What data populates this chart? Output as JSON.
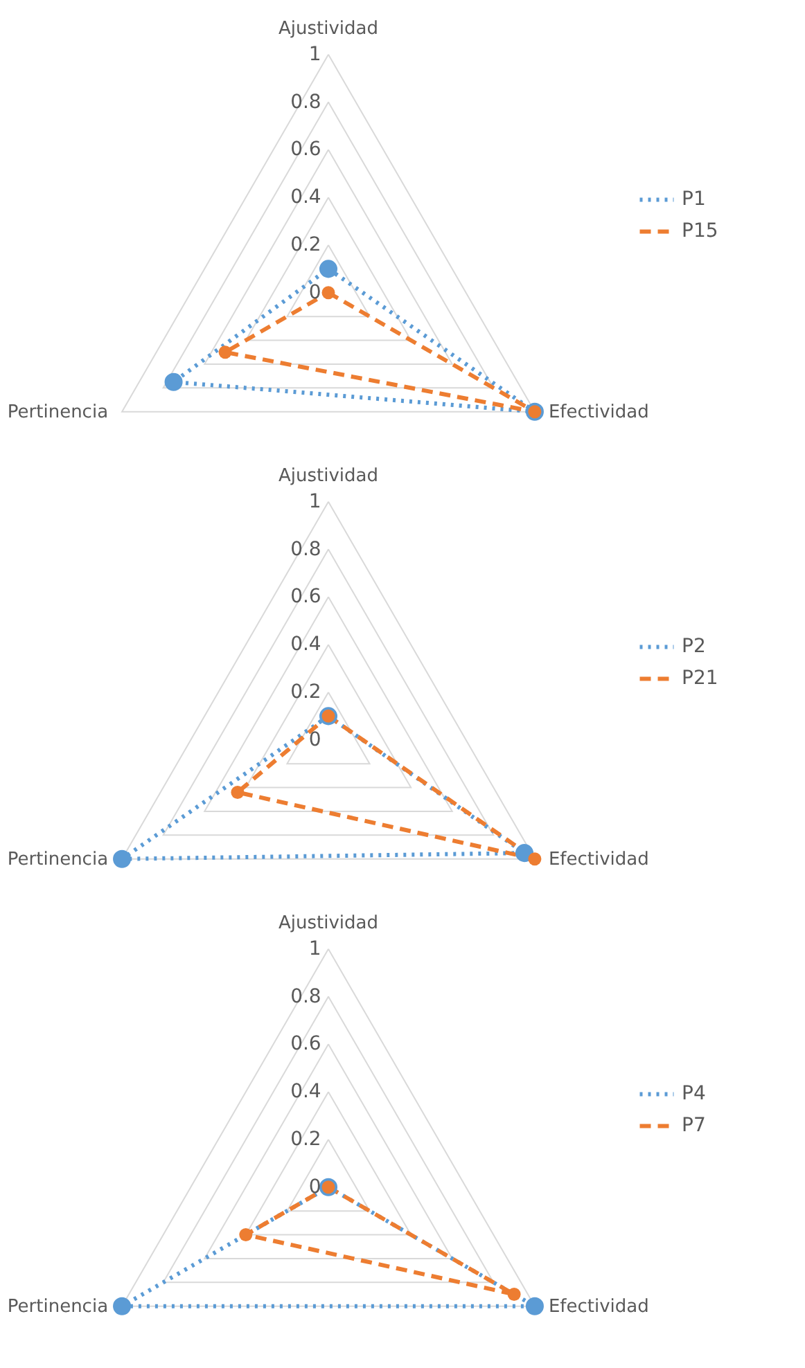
{
  "chart_data": [
    {
      "type": "radar",
      "categories": [
        "Ajustividad",
        "Efectividad",
        "Pertinencia"
      ],
      "ylim": [
        0,
        1
      ],
      "yticks": [
        0,
        0.2,
        0.4,
        0.6,
        0.8,
        1
      ],
      "grid": true,
      "legend": "right",
      "marker": "circle",
      "series": [
        {
          "name": "P1",
          "color": "#5b9bd5",
          "line_style": "dotted",
          "values": [
            0.1,
            1,
            0.75
          ]
        },
        {
          "name": "P15",
          "color": "#ed7d31",
          "line_style": "dashed",
          "values": [
            0,
            1,
            0.5
          ]
        }
      ]
    },
    {
      "type": "radar",
      "categories": [
        "Ajustividad",
        "Efectividad",
        "Pertinencia"
      ],
      "ylim": [
        0,
        1
      ],
      "yticks": [
        0,
        0.2,
        0.4,
        0.6,
        0.8,
        1
      ],
      "grid": true,
      "legend": "right",
      "marker": "circle",
      "series": [
        {
          "name": "P2",
          "color": "#5b9bd5",
          "line_style": "dotted",
          "values": [
            0.1,
            0.95,
            1
          ]
        },
        {
          "name": "P21",
          "color": "#ed7d31",
          "line_style": "dashed",
          "values": [
            0.1,
            1,
            0.44
          ]
        }
      ]
    },
    {
      "type": "radar",
      "categories": [
        "Ajustividad",
        "Efectividad",
        "Pertinencia"
      ],
      "ylim": [
        0,
        1
      ],
      "yticks": [
        0,
        0.2,
        0.4,
        0.6,
        0.8,
        1
      ],
      "grid": true,
      "legend": "right",
      "marker": "circle",
      "series": [
        {
          "name": "P4",
          "color": "#5b9bd5",
          "line_style": "dotted",
          "values": [
            0,
            1,
            1
          ]
        },
        {
          "name": "P7",
          "color": "#ed7d31",
          "line_style": "dashed",
          "values": [
            0,
            0.9,
            0.4
          ]
        }
      ]
    }
  ]
}
